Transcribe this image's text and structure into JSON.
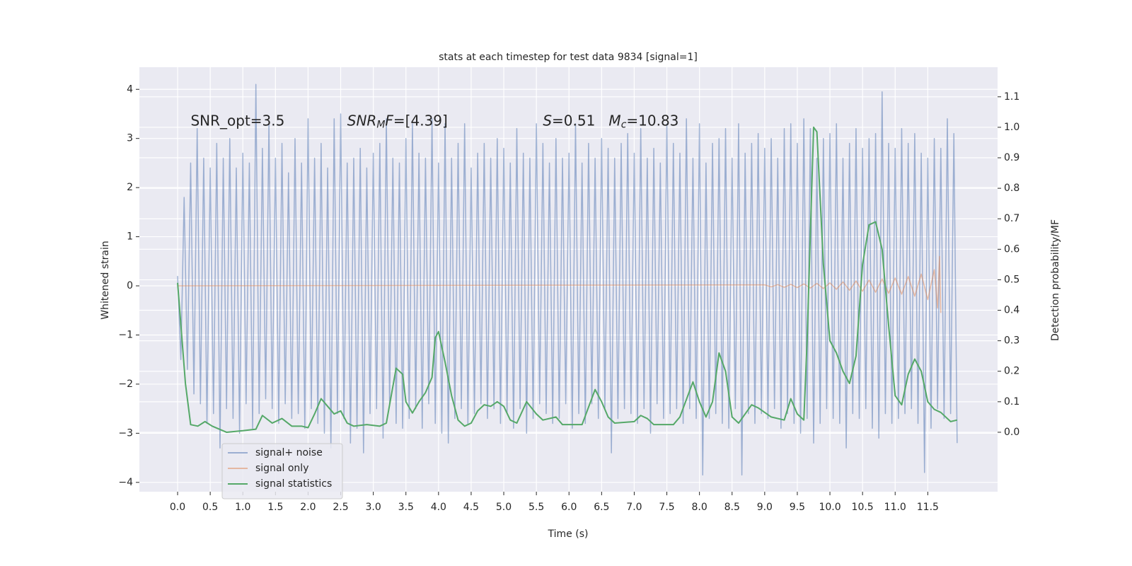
{
  "chart_data": {
    "type": "line",
    "title": "stats at each timestep for test data 9834 [signal=1]",
    "xlabel": "Time (s)",
    "ylabel": "Whitened strain",
    "y2label": "Detection probability/MF",
    "xlim": [
      -0.586,
      12.57
    ],
    "ylim": [
      -4.19,
      4.45
    ],
    "y2lim": [
      -0.195,
      1.197
    ],
    "xticks": [
      {
        "value": 0,
        "label": "0.0"
      },
      0.5,
      {
        "value": 1,
        "label": "1.0"
      },
      1.5,
      {
        "value": 2,
        "label": "2.0"
      },
      2.5,
      {
        "value": 3,
        "label": "3.0"
      },
      3.5,
      {
        "value": 4,
        "label": "4.0"
      },
      4.5,
      {
        "value": 5,
        "label": "5.0"
      },
      5.5,
      {
        "value": 6,
        "label": "6.0"
      },
      6.5,
      {
        "value": 7,
        "label": "7.0"
      },
      7.5,
      {
        "value": 8,
        "label": "8.0"
      },
      8.5,
      {
        "value": 9,
        "label": "9.0"
      },
      9.5,
      {
        "value": 10,
        "label": "10.0"
      },
      10.5,
      {
        "value": 11,
        "label": "11.0"
      },
      11.5
    ],
    "yticks": [
      {
        "value": -4,
        "label": "−4"
      },
      {
        "value": -3,
        "label": "−3"
      },
      {
        "value": -2,
        "label": "−2"
      },
      {
        "value": -1,
        "label": "−1"
      },
      0,
      1,
      2,
      3,
      4
    ],
    "y2ticks": [
      {
        "value": 0,
        "label": "0.0"
      },
      0.1,
      0.2,
      0.3,
      0.4,
      0.5,
      0.6,
      0.7,
      0.8,
      0.9,
      {
        "value": 1,
        "label": "1.0"
      },
      1.1
    ],
    "grid": true,
    "legend": "lower left",
    "annotations": [
      {
        "x": 0.2,
        "y": 3.35,
        "parts": [
          {
            "text": "SNR_opt=3.5"
          }
        ]
      },
      {
        "x": 2.6,
        "y": 3.35,
        "parts": [
          {
            "text": "SNR",
            "italic": true
          },
          {
            "text": "M",
            "italic": true,
            "sub": true
          },
          {
            "text": "F",
            "italic": true
          },
          {
            "text": "=[4.39]"
          }
        ]
      },
      {
        "x": 5.6,
        "y": 3.35,
        "parts": [
          {
            "text": "S",
            "italic": true
          },
          {
            "text": "=0.51   "
          },
          {
            "text": "M",
            "italic": true
          },
          {
            "text": "c",
            "italic": true,
            "sub": true
          },
          {
            "text": "=10.83"
          }
        ]
      }
    ],
    "series": [
      {
        "name": "signal+ noise",
        "color": "#4c72b0",
        "opacity": 0.5,
        "x": [
          0,
          0.05,
          0.1,
          0.15,
          0.2,
          0.25,
          0.3,
          0.35,
          0.4,
          0.45,
          0.5,
          0.55,
          0.6,
          0.65,
          0.7,
          0.75,
          0.8,
          0.85,
          0.9,
          0.95,
          1,
          1.05,
          1.1,
          1.15,
          1.2,
          1.25,
          1.3,
          1.35,
          1.4,
          1.45,
          1.5,
          1.55,
          1.6,
          1.65,
          1.7,
          1.75,
          1.8,
          1.85,
          1.9,
          1.95,
          2,
          2.05,
          2.1,
          2.15,
          2.2,
          2.25,
          2.3,
          2.35,
          2.4,
          2.45,
          2.5,
          2.55,
          2.6,
          2.65,
          2.7,
          2.75,
          2.8,
          2.85,
          2.9,
          2.95,
          3,
          3.05,
          3.1,
          3.15,
          3.2,
          3.25,
          3.3,
          3.35,
          3.4,
          3.45,
          3.5,
          3.55,
          3.6,
          3.65,
          3.7,
          3.75,
          3.8,
          3.85,
          3.9,
          3.95,
          4,
          4.05,
          4.1,
          4.15,
          4.2,
          4.25,
          4.3,
          4.35,
          4.4,
          4.45,
          4.5,
          4.55,
          4.6,
          4.65,
          4.7,
          4.75,
          4.8,
          4.85,
          4.9,
          4.95,
          5,
          5.05,
          5.1,
          5.15,
          5.2,
          5.25,
          5.3,
          5.35,
          5.4,
          5.45,
          5.5,
          5.55,
          5.6,
          5.65,
          5.7,
          5.75,
          5.8,
          5.85,
          5.9,
          5.95,
          6,
          6.05,
          6.1,
          6.15,
          6.2,
          6.25,
          6.3,
          6.35,
          6.4,
          6.45,
          6.5,
          6.55,
          6.6,
          6.65,
          6.7,
          6.75,
          6.8,
          6.85,
          6.9,
          6.95,
          7,
          7.05,
          7.1,
          7.15,
          7.2,
          7.25,
          7.3,
          7.35,
          7.4,
          7.45,
          7.5,
          7.55,
          7.6,
          7.65,
          7.7,
          7.75,
          7.8,
          7.85,
          7.9,
          7.95,
          8,
          8.05,
          8.1,
          8.15,
          8.2,
          8.25,
          8.3,
          8.35,
          8.4,
          8.45,
          8.5,
          8.55,
          8.6,
          8.65,
          8.7,
          8.75,
          8.8,
          8.85,
          8.9,
          8.95,
          9,
          9.05,
          9.1,
          9.15,
          9.2,
          9.25,
          9.3,
          9.35,
          9.4,
          9.45,
          9.5,
          9.55,
          9.6,
          9.65,
          9.7,
          9.75,
          9.8,
          9.85,
          9.9,
          9.95,
          10,
          10.05,
          10.1,
          10.15,
          10.2,
          10.25,
          10.3,
          10.35,
          10.4,
          10.45,
          10.5,
          10.55,
          10.6,
          10.65,
          10.7,
          10.75,
          10.8,
          10.85,
          10.9,
          10.95,
          11,
          11.05,
          11.1,
          11.15,
          11.2,
          11.25,
          11.3,
          11.35,
          11.4,
          11.45,
          11.5,
          11.55,
          11.6,
          11.65,
          11.7,
          11.75,
          11.8,
          11.85,
          11.9,
          11.95
        ],
        "values": [
          0.2,
          -1.5,
          1.8,
          -1.7,
          2.5,
          -2.2,
          3.2,
          -2.4,
          2.6,
          -2.8,
          2.4,
          -2.6,
          2.9,
          -3.3,
          2.6,
          -2.5,
          3.0,
          -2.7,
          2.4,
          -3.0,
          2.7,
          -2.4,
          2.5,
          -2.9,
          4.1,
          -2.6,
          2.8,
          -2.3,
          3.3,
          -2.5,
          2.6,
          -2.8,
          2.9,
          -2.4,
          2.3,
          -2.7,
          3.0,
          -2.6,
          2.5,
          -2.9,
          3.4,
          -2.5,
          2.6,
          -2.8,
          2.9,
          -3.0,
          2.4,
          -3.3,
          3.4,
          -2.6,
          3.5,
          -2.7,
          2.5,
          -3.2,
          2.6,
          -2.9,
          2.8,
          -3.4,
          2.4,
          -2.6,
          2.7,
          -2.5,
          2.9,
          -3.1,
          3.4,
          -2.4,
          2.6,
          -2.8,
          2.5,
          -2.9,
          3.0,
          -2.7,
          3.3,
          -2.5,
          2.7,
          -2.9,
          2.6,
          -2.4,
          3.4,
          -2.8,
          2.5,
          -3.0,
          3.3,
          -3.2,
          2.6,
          -2.7,
          2.9,
          -2.5,
          3.3,
          -2.8,
          2.4,
          -2.6,
          2.7,
          -2.4,
          2.9,
          -2.7,
          2.6,
          -2.5,
          3.0,
          -2.8,
          2.8,
          -2.6,
          2.5,
          -2.9,
          3.2,
          -2.5,
          2.7,
          -3.0,
          2.6,
          -2.7,
          3.3,
          -2.4,
          2.9,
          -2.6,
          2.5,
          -2.8,
          3.0,
          -2.7,
          2.6,
          -2.4,
          2.7,
          -2.9,
          3.3,
          -2.6,
          2.5,
          -2.8,
          2.9,
          -2.4,
          2.6,
          -2.7,
          3.0,
          -2.5,
          2.8,
          -3.4,
          2.6,
          -2.7,
          2.9,
          -2.5,
          3.1,
          -2.6,
          2.7,
          -2.8,
          3.2,
          -2.5,
          2.6,
          -3.0,
          2.8,
          -2.4,
          2.5,
          -2.7,
          3.3,
          -2.6,
          2.9,
          -2.5,
          2.7,
          -2.8,
          3.4,
          -2.5,
          2.6,
          -2.7,
          3.3,
          -3.85,
          2.5,
          -2.7,
          2.9,
          -2.6,
          3.0,
          -2.8,
          3.2,
          -2.9,
          2.6,
          -2.5,
          3.3,
          -3.85,
          2.7,
          -2.6,
          2.9,
          -2.8,
          3.1,
          -2.6,
          2.8,
          -2.7,
          3.0,
          -2.5,
          2.6,
          -2.9,
          3.2,
          -2.6,
          3.3,
          -2.8,
          2.9,
          -3.0,
          3.4,
          -2.7,
          3.2,
          -3.2,
          2.6,
          -2.8,
          3.0,
          -2.5,
          3.1,
          -2.7,
          3.3,
          -2.8,
          2.6,
          -3.3,
          2.9,
          -2.6,
          3.2,
          -2.7,
          2.8,
          -2.5,
          3.0,
          -2.9,
          3.1,
          -3.1,
          3.95,
          -2.6,
          2.9,
          -2.8,
          2.8,
          -2.7,
          3.2,
          -2.6,
          2.9,
          -2.5,
          3.1,
          -2.8,
          2.7,
          -3.8,
          2.6,
          -2.9,
          3.0,
          -2.5,
          2.8,
          -2.7,
          3.4,
          -2.6,
          3.1,
          -3.2
        ]
      },
      {
        "name": "signal only",
        "color": "#dd8452",
        "opacity": 0.5,
        "x": [
          0,
          9.0,
          9.1,
          9.2,
          9.3,
          9.4,
          9.5,
          9.6,
          9.7,
          9.8,
          9.9,
          10.0,
          10.1,
          10.2,
          10.3,
          10.4,
          10.5,
          10.6,
          10.7,
          10.8,
          10.9,
          11.0,
          11.1,
          11.2,
          11.3,
          11.4,
          11.5,
          11.6,
          11.65,
          11.68,
          11.7
        ],
        "values": [
          0,
          0.02,
          -0.02,
          0.025,
          -0.03,
          0.03,
          -0.035,
          0.04,
          -0.045,
          0.05,
          -0.055,
          0.06,
          -0.07,
          0.08,
          -0.09,
          0.1,
          -0.11,
          0.12,
          -0.13,
          0.14,
          -0.15,
          0.16,
          -0.17,
          0.19,
          -0.21,
          0.24,
          -0.28,
          0.33,
          -0.45,
          0.6,
          -0.55
        ]
      },
      {
        "name": "signal statistics",
        "color": "#55a868",
        "axis": "y2",
        "x": [
          0,
          0.12,
          0.2,
          0.31,
          0.42,
          0.53,
          0.75,
          1.0,
          1.2,
          1.3,
          1.45,
          1.6,
          1.75,
          1.9,
          2.0,
          2.1,
          2.2,
          2.3,
          2.4,
          2.5,
          2.6,
          2.7,
          2.9,
          3.1,
          3.2,
          3.35,
          3.45,
          3.5,
          3.6,
          3.7,
          3.8,
          3.9,
          3.95,
          4.0,
          4.1,
          4.2,
          4.3,
          4.4,
          4.5,
          4.6,
          4.7,
          4.8,
          4.9,
          5.0,
          5.1,
          5.2,
          5.35,
          5.5,
          5.6,
          5.8,
          5.9,
          6.2,
          6.4,
          6.5,
          6.6,
          6.7,
          7.0,
          7.1,
          7.2,
          7.3,
          7.6,
          7.7,
          7.9,
          8.0,
          8.1,
          8.2,
          8.3,
          8.4,
          8.5,
          8.6,
          8.8,
          8.9,
          9.1,
          9.3,
          9.4,
          9.5,
          9.6,
          9.65,
          9.75,
          9.8,
          9.9,
          10.0,
          10.1,
          10.2,
          10.3,
          10.4,
          10.5,
          10.6,
          10.7,
          10.8,
          10.9,
          11.0,
          11.1,
          11.2,
          11.3,
          11.4,
          11.5,
          11.6,
          11.7,
          11.85,
          11.95
        ],
        "values": [
          0.49,
          0.16,
          0.025,
          0.02,
          0.035,
          0.02,
          0.0,
          0.005,
          0.01,
          0.055,
          0.03,
          0.045,
          0.02,
          0.02,
          0.015,
          0.06,
          0.11,
          0.085,
          0.06,
          0.07,
          0.03,
          0.02,
          0.025,
          0.02,
          0.03,
          0.21,
          0.19,
          0.1,
          0.063,
          0.1,
          0.13,
          0.18,
          0.31,
          0.33,
          0.23,
          0.12,
          0.04,
          0.02,
          0.03,
          0.07,
          0.09,
          0.085,
          0.1,
          0.085,
          0.04,
          0.03,
          0.1,
          0.06,
          0.04,
          0.05,
          0.025,
          0.025,
          0.14,
          0.1,
          0.05,
          0.03,
          0.035,
          0.055,
          0.045,
          0.025,
          0.025,
          0.05,
          0.165,
          0.1,
          0.05,
          0.1,
          0.26,
          0.2,
          0.05,
          0.03,
          0.09,
          0.08,
          0.05,
          0.04,
          0.11,
          0.06,
          0.04,
          0.3,
          1.0,
          0.985,
          0.55,
          0.3,
          0.26,
          0.2,
          0.16,
          0.25,
          0.55,
          0.68,
          0.69,
          0.6,
          0.35,
          0.12,
          0.09,
          0.19,
          0.24,
          0.2,
          0.1,
          0.075,
          0.065,
          0.035,
          0.04
        ]
      }
    ]
  }
}
